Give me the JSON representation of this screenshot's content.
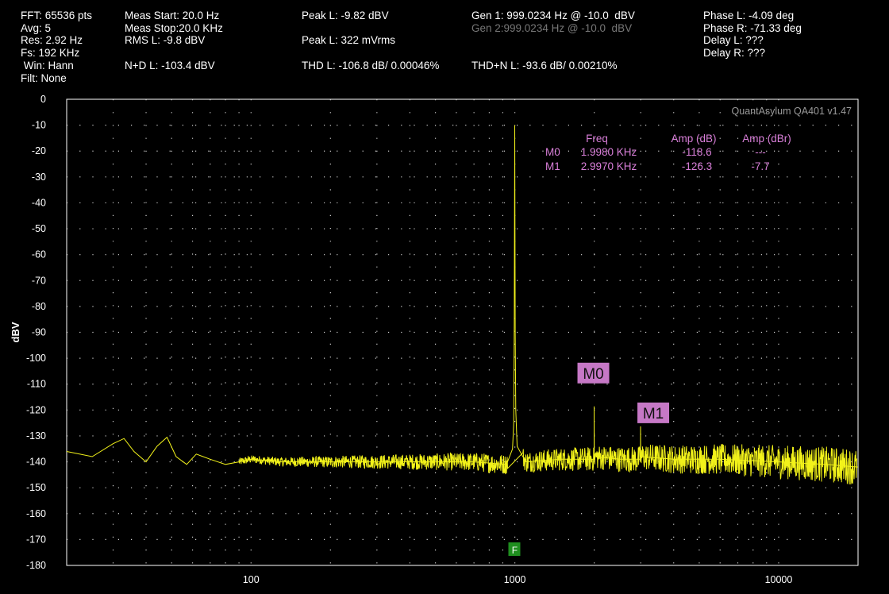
{
  "header": {
    "fft": "FFT: 65536 pts",
    "avg": "Avg: 5",
    "res": "Res: 2.92 Hz",
    "fs": "Fs: 192 KHz",
    "win": " Win: Hann",
    "filt": "Filt: None",
    "meas_start": "Meas Start: 20.0 Hz",
    "meas_stop": "Meas Stop:20.0 KHz",
    "rms_l": "RMS L: -9.8 dBV",
    "nd_l": "N+D L: -103.4 dBV",
    "peak_l_dbv": "Peak L: -9.82 dBV",
    "peak_l_mvrms": "Peak L: 322 mVrms",
    "thd_l": "THD L: -106.8 dB/ 0.00046%",
    "gen1": "Gen 1: 999.0234 Hz @ -10.0  dBV",
    "gen2": "Gen 2:999.0234 Hz @ -10.0  dBV",
    "thdn_l": "THD+N L: -93.6 dB/ 0.00210%",
    "phase_l": "Phase L: -4.09 deg",
    "phase_r": "Phase R: -71.33 deg",
    "delay_l": "Delay L: ???",
    "delay_r": "Delay R: ???"
  },
  "colors": {
    "trace": "#f2f21a",
    "marker": "#c678c6",
    "marker_text": "#d97fd9",
    "grid": "#cfcfcf",
    "frame": "#ffffff",
    "fund_flag": "#1f8f1f"
  },
  "chart_data": {
    "type": "line",
    "title": "",
    "watermark": "QuantAsylum QA401 v1.47",
    "ylabel": "dBV",
    "xlabel": "",
    "xscale": "log",
    "xlim": [
      20,
      20000
    ],
    "ylim": [
      -180,
      0
    ],
    "yticks": [
      0,
      -10,
      -20,
      -30,
      -40,
      -50,
      -60,
      -70,
      -80,
      -90,
      -100,
      -110,
      -120,
      -130,
      -140,
      -150,
      -160,
      -170,
      -180
    ],
    "xticks": [
      100,
      1000,
      10000
    ],
    "xtick_labels": [
      "100",
      "1000",
      "10000"
    ],
    "grid": true,
    "series": [
      {
        "x": [
          20,
          25,
          30,
          33,
          36,
          40,
          44,
          48,
          52,
          57,
          62,
          70,
          80,
          90,
          100,
          130,
          200,
          400,
          700,
          930,
          980,
          990,
          995,
          999,
          1003,
          1008,
          1020,
          1100,
          1500,
          1997,
          1998,
          2000,
          2500,
          2995,
          2997,
          3000,
          4000,
          6000,
          10000,
          15000,
          20000
        ],
        "y": [
          -136,
          -138,
          -133,
          -131,
          -136,
          -140,
          -134,
          -130.5,
          -138,
          -141,
          -137,
          -139,
          -141,
          -140,
          -139,
          -140,
          -140,
          -140,
          -140,
          -141,
          -135,
          -125,
          -85,
          -10,
          -90,
          -120,
          -134,
          -140,
          -139,
          -139,
          -118.6,
          -138,
          -139,
          -139,
          -126.3,
          -138,
          -139,
          -139,
          -140,
          -141,
          -142
        ]
      }
    ],
    "fundamental_flag": {
      "freq": 999.0234,
      "label": "F"
    },
    "markers": [
      {
        "label": "M0",
        "freq": 1998,
        "amp": -118.6
      },
      {
        "label": "M1",
        "freq": 2997,
        "amp": -126.3
      }
    ],
    "marker_table": {
      "headers": [
        "Freq",
        "Amp (dB)",
        "Amp (dBr)"
      ],
      "rows": [
        {
          "name": "M0",
          "freq": "1.9980 KHz",
          "amp_db": "-118.6",
          "amp_dbr": "---"
        },
        {
          "name": "M1",
          "freq": "2.9970 KHz",
          "amp_db": "-126.3",
          "amp_dbr": "-7.7"
        }
      ]
    }
  }
}
